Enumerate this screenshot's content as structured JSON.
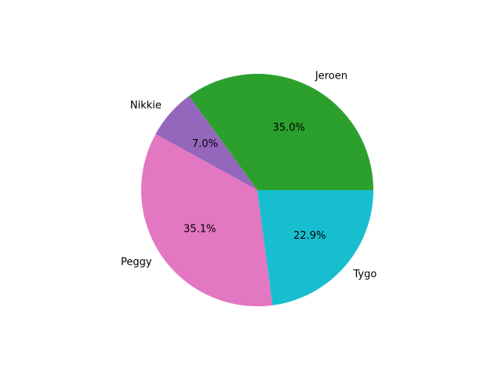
{
  "chart_data": {
    "type": "pie",
    "title": "",
    "labels": [
      "Jeroen",
      "Nikkie",
      "Peggy",
      "Tygo"
    ],
    "values": [
      35.0,
      7.0,
      35.1,
      22.9
    ],
    "pct_labels": [
      "35.0%",
      "7.0%",
      "35.1%",
      "22.9%"
    ],
    "colors": [
      "#2ca02c",
      "#9467bd",
      "#e377c2",
      "#17becf"
    ],
    "start_angle_deg": 0,
    "direction": "counterclockwise",
    "legend": "none"
  }
}
